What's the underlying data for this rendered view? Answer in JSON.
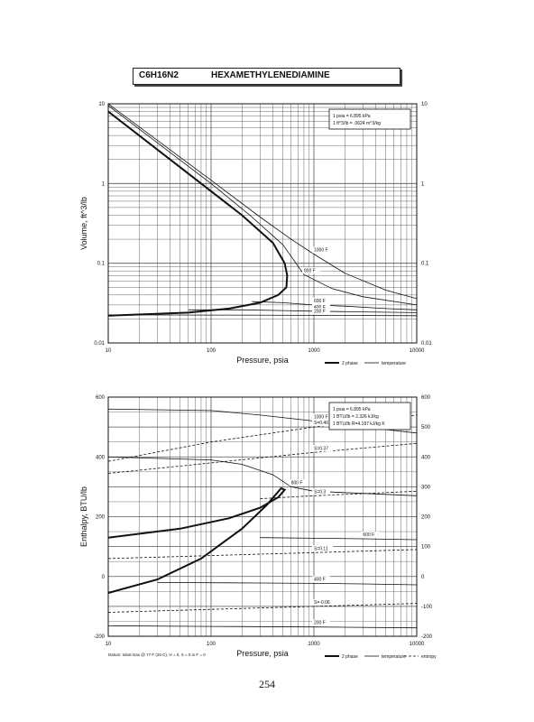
{
  "header": {
    "formula": "C6H16N2",
    "name": "HEXAMETHYLENEDIAMINE"
  },
  "page_number": "254",
  "datum_note": "Datum: Ideal Gas @ 77 F (25 C), H = 0, S = 0 in F = 0",
  "chart_data": [
    {
      "type": "line",
      "xscale": "log",
      "yscale": "log",
      "xlim": [
        10,
        10000
      ],
      "ylim": [
        0.01,
        10
      ],
      "xlabel": "Pressure,  psia",
      "ylabel": "Volume,  ft^3/lb",
      "x_ticks": [
        "10",
        "100",
        "1000",
        "10000"
      ],
      "y_ticks": [
        "0.01",
        "0.1",
        "1",
        "10"
      ],
      "grid": true,
      "legend": [
        "2 phase",
        "temperature"
      ],
      "legend_position": "bottom-right",
      "conversion_box": [
        "1 psia = 6.895 kPa",
        "1 ft^3/lb = .0624 m^3/kg"
      ],
      "series": [
        {
          "name": "2 phase",
          "style": "bold",
          "x": [
            10,
            50,
            200,
            400,
            520,
            550,
            540,
            450,
            300,
            150,
            60,
            10
          ],
          "y": [
            8.0,
            1.6,
            0.4,
            0.18,
            0.1,
            0.07,
            0.05,
            0.04,
            0.032,
            0.027,
            0.024,
            0.022
          ]
        },
        {
          "name": "1000 F",
          "label": "1000 F",
          "x": [
            10,
            100,
            300,
            600,
            1000,
            2000,
            5000,
            10000
          ],
          "y": [
            10,
            1.1,
            0.38,
            0.2,
            0.13,
            0.075,
            0.046,
            0.036
          ]
        },
        {
          "name": "800 F",
          "label": "800 F",
          "x": [
            10,
            100,
            250,
            500,
            800,
            1500,
            3000,
            10000
          ],
          "y": [
            9.5,
            1.0,
            0.38,
            0.17,
            0.072,
            0.048,
            0.038,
            0.03
          ]
        },
        {
          "name": "600 F",
          "label": "600 F",
          "x": [
            250,
            500,
            700,
            1000,
            2000,
            5000,
            10000
          ],
          "y": [
            0.033,
            0.032,
            0.031,
            0.03,
            0.029,
            0.027,
            0.026
          ]
        },
        {
          "name": "400 F",
          "label": "400 F",
          "x": [
            60,
            200,
            500,
            1000,
            3000,
            10000
          ],
          "y": [
            0.026,
            0.026,
            0.0255,
            0.025,
            0.0245,
            0.024
          ]
        },
        {
          "name": "200 F",
          "label": "200 F",
          "x": [
            10,
            100,
            1000,
            10000
          ],
          "y": [
            0.0225,
            0.0224,
            0.0222,
            0.022
          ]
        }
      ]
    },
    {
      "type": "line",
      "xscale": "log",
      "yscale": "linear",
      "xlim": [
        10,
        10000
      ],
      "ylim": [
        -200,
        600
      ],
      "xlabel": "Pressure,  psia",
      "ylabel": "Enthalpy, BTU/lb",
      "x_ticks": [
        "10",
        "100",
        "1000",
        "10000"
      ],
      "y_ticks": [
        "-200",
        "0",
        "200",
        "400",
        "600"
      ],
      "y2_ticks": [
        "-200",
        "-100",
        "0",
        "100",
        "200",
        "300",
        "400",
        "500",
        "600"
      ],
      "grid": true,
      "legend": [
        "2 phase",
        "temperature",
        "entropy"
      ],
      "legend_position": "bottom-right",
      "conversion_box": [
        "1 psia = 6.895 kPa",
        "1 BTU/lb = 2.326 kJ/kg",
        "1 BTU/lb R=4.187 kJ/kg K"
      ],
      "series": [
        {
          "name": "2 phase",
          "style": "bold",
          "x": [
            10,
            50,
            150,
            300,
            450,
            520,
            480,
            350,
            200,
            80,
            30,
            10
          ],
          "y": [
            130,
            160,
            195,
            230,
            265,
            290,
            295,
            240,
            160,
            60,
            -10,
            -55
          ]
        },
        {
          "name": "1000 F",
          "label": "1000 F",
          "x": [
            10,
            100,
            300,
            1000,
            3000,
            10000
          ],
          "y": [
            560,
            555,
            540,
            520,
            500,
            480
          ]
        },
        {
          "name": "800 F",
          "label": "800 F",
          "x": [
            10,
            100,
            200,
            400,
            600,
            1000,
            3000,
            10000
          ],
          "y": [
            400,
            390,
            375,
            340,
            300,
            285,
            278,
            270
          ]
        },
        {
          "name": "600 F",
          "label": "600 F",
          "x": [
            300,
            1000,
            3000,
            10000
          ],
          "y": [
            130,
            128,
            126,
            123
          ]
        },
        {
          "name": "400 F",
          "label": "400 F",
          "x": [
            30,
            300,
            1000,
            3000,
            10000
          ],
          "y": [
            -20,
            -22,
            -23,
            -25,
            -28
          ]
        },
        {
          "name": "200 F",
          "label": "200 F",
          "x": [
            10,
            100,
            1000,
            10000
          ],
          "y": [
            -165,
            -167,
            -169,
            -172
          ]
        },
        {
          "name": "S=0.46",
          "label": "S=0.46",
          "style": "dashed",
          "x": [
            10,
            100,
            1000,
            10000
          ],
          "y": [
            385,
            450,
            500,
            540
          ]
        },
        {
          "name": "S=0.37",
          "label": "S=0.37",
          "style": "dashed",
          "x": [
            10,
            100,
            1000,
            10000
          ],
          "y": [
            345,
            380,
            415,
            445
          ]
        },
        {
          "name": "S=0.3",
          "label": "S=0.3",
          "style": "dashed",
          "x": [
            300,
            1000,
            10000
          ],
          "y": [
            260,
            270,
            285
          ]
        },
        {
          "name": "S=0.11",
          "label": "S=0.11",
          "style": "dashed",
          "x": [
            10,
            100,
            1000,
            10000
          ],
          "y": [
            60,
            70,
            80,
            90
          ]
        },
        {
          "name": "S=-0.06",
          "label": "S=-0.06",
          "style": "dashed",
          "x": [
            10,
            100,
            1000,
            10000
          ],
          "y": [
            -120,
            -110,
            -100,
            -90
          ]
        }
      ]
    }
  ]
}
